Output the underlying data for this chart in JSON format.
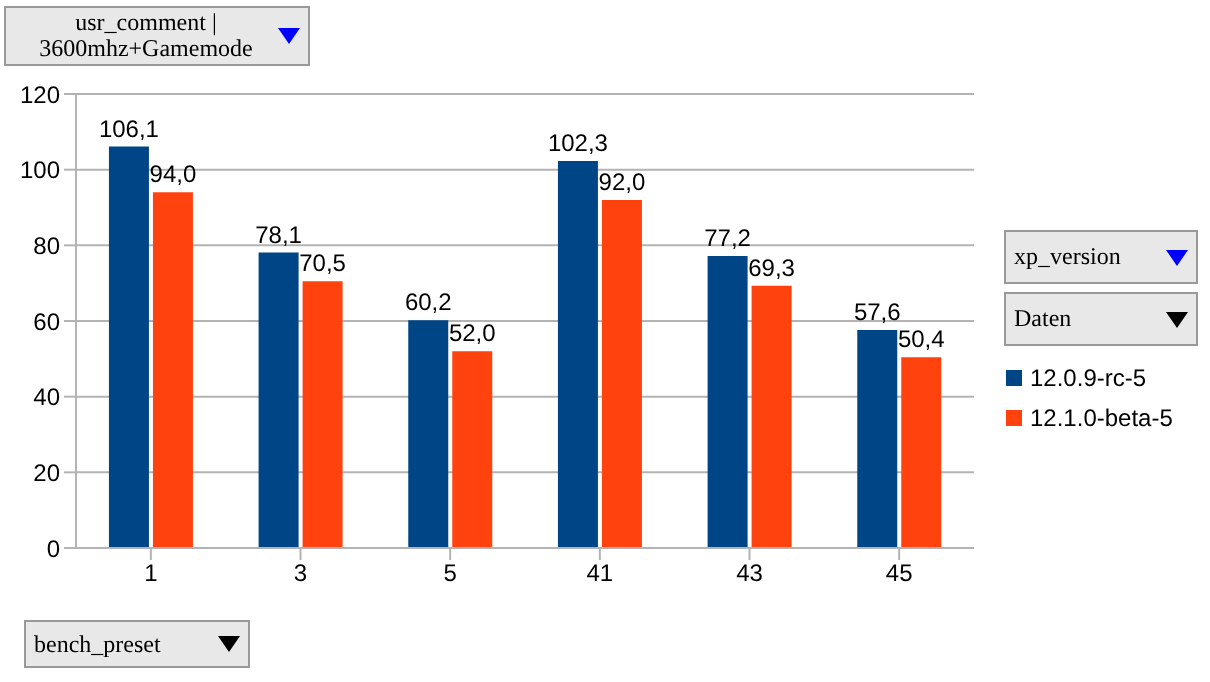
{
  "chart_data": {
    "type": "bar",
    "xlabel": "bench_preset",
    "legend_title": "xp_version",
    "annotations": [
      "usr_comment | 3600mhz+Gamemode",
      "Daten"
    ],
    "categories": [
      "1",
      "3",
      "5",
      "41",
      "43",
      "45"
    ],
    "series": [
      {
        "name": "12.0.9-rc-5",
        "color": "#004586",
        "values": [
          106.1,
          78.1,
          60.2,
          102.3,
          77.2,
          57.6
        ],
        "value_labels": [
          "106,1",
          "78,1",
          "60,2",
          "102,3",
          "77,2",
          "57,6"
        ]
      },
      {
        "name": "12.1.0-beta-5",
        "color": "#ff420e",
        "values": [
          94.0,
          70.5,
          52.0,
          92.0,
          69.3,
          50.4
        ],
        "value_labels": [
          "94,0",
          "70,5",
          "52,0",
          "92,0",
          "69,3",
          "50,4"
        ]
      }
    ],
    "ylim": [
      0,
      120
    ],
    "yticks": [
      0,
      20,
      40,
      60,
      80,
      100,
      120
    ],
    "grid": "y",
    "legend": "right"
  }
}
